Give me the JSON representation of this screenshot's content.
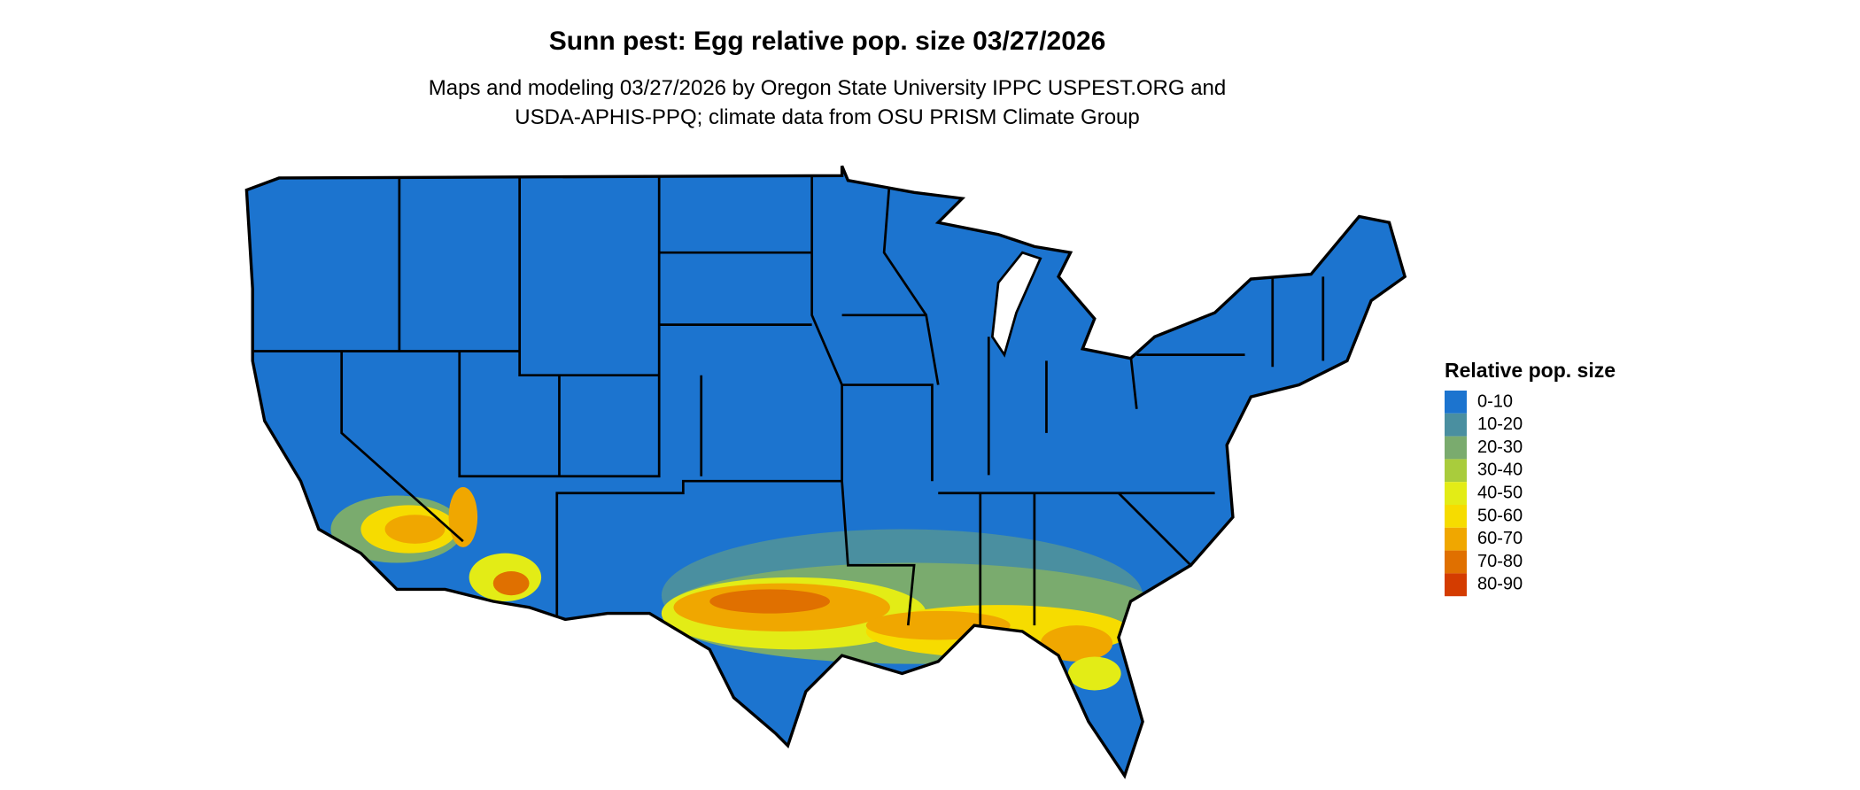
{
  "header": {
    "title": "Sunn pest: Egg relative pop. size 03/27/2026",
    "subtitle": [
      "Maps and modeling 03/27/2026 by Oregon State University IPPC USPEST.ORG and",
      "USDA-APHIS-PPQ; climate data from OSU PRISM Climate Group"
    ]
  },
  "legend": {
    "title": "Relative pop. size",
    "items": [
      {
        "label": "0-10",
        "color": "#1c74cf"
      },
      {
        "label": "10-20",
        "color": "#4a8fa0"
      },
      {
        "label": "20-30",
        "color": "#7aab6e"
      },
      {
        "label": "30-40",
        "color": "#a9cc3c"
      },
      {
        "label": "40-50",
        "color": "#e3ec16"
      },
      {
        "label": "50-60",
        "color": "#f6dc00"
      },
      {
        "label": "60-70",
        "color": "#f0a700"
      },
      {
        "label": "70-80",
        "color": "#e07000"
      },
      {
        "label": "80-90",
        "color": "#d43c00"
      }
    ]
  }
}
